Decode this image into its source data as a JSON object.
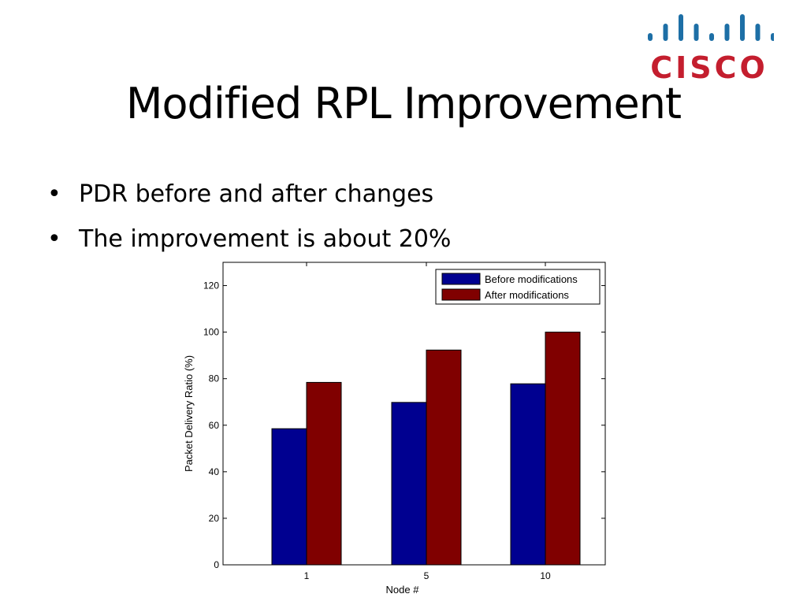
{
  "slide": {
    "title": "Modified RPL Improvement",
    "bullets": [
      "PDR before and after changes",
      "The improvement is about 20%"
    ]
  },
  "logo": {
    "text": "CISCO",
    "color": "#c41e2e",
    "bars_color": "#1d6fa6",
    "icon": "cisco-logo-icon"
  },
  "chart_data": {
    "type": "bar",
    "categories": [
      "1",
      "5",
      "10"
    ],
    "series": [
      {
        "name": "Before modifications",
        "color": "#000090",
        "values": [
          58.5,
          69.8,
          77.8
        ]
      },
      {
        "name": "After modifications",
        "color": "#800000",
        "values": [
          78.4,
          92.3,
          100
        ]
      }
    ],
    "xlabel": "Node #",
    "ylabel": "Packet Delivery Ratio (%)",
    "ylim": [
      0,
      130
    ],
    "yticks": [
      0,
      20,
      40,
      60,
      80,
      100,
      120
    ],
    "grid": false,
    "legend_position": "top-right"
  }
}
